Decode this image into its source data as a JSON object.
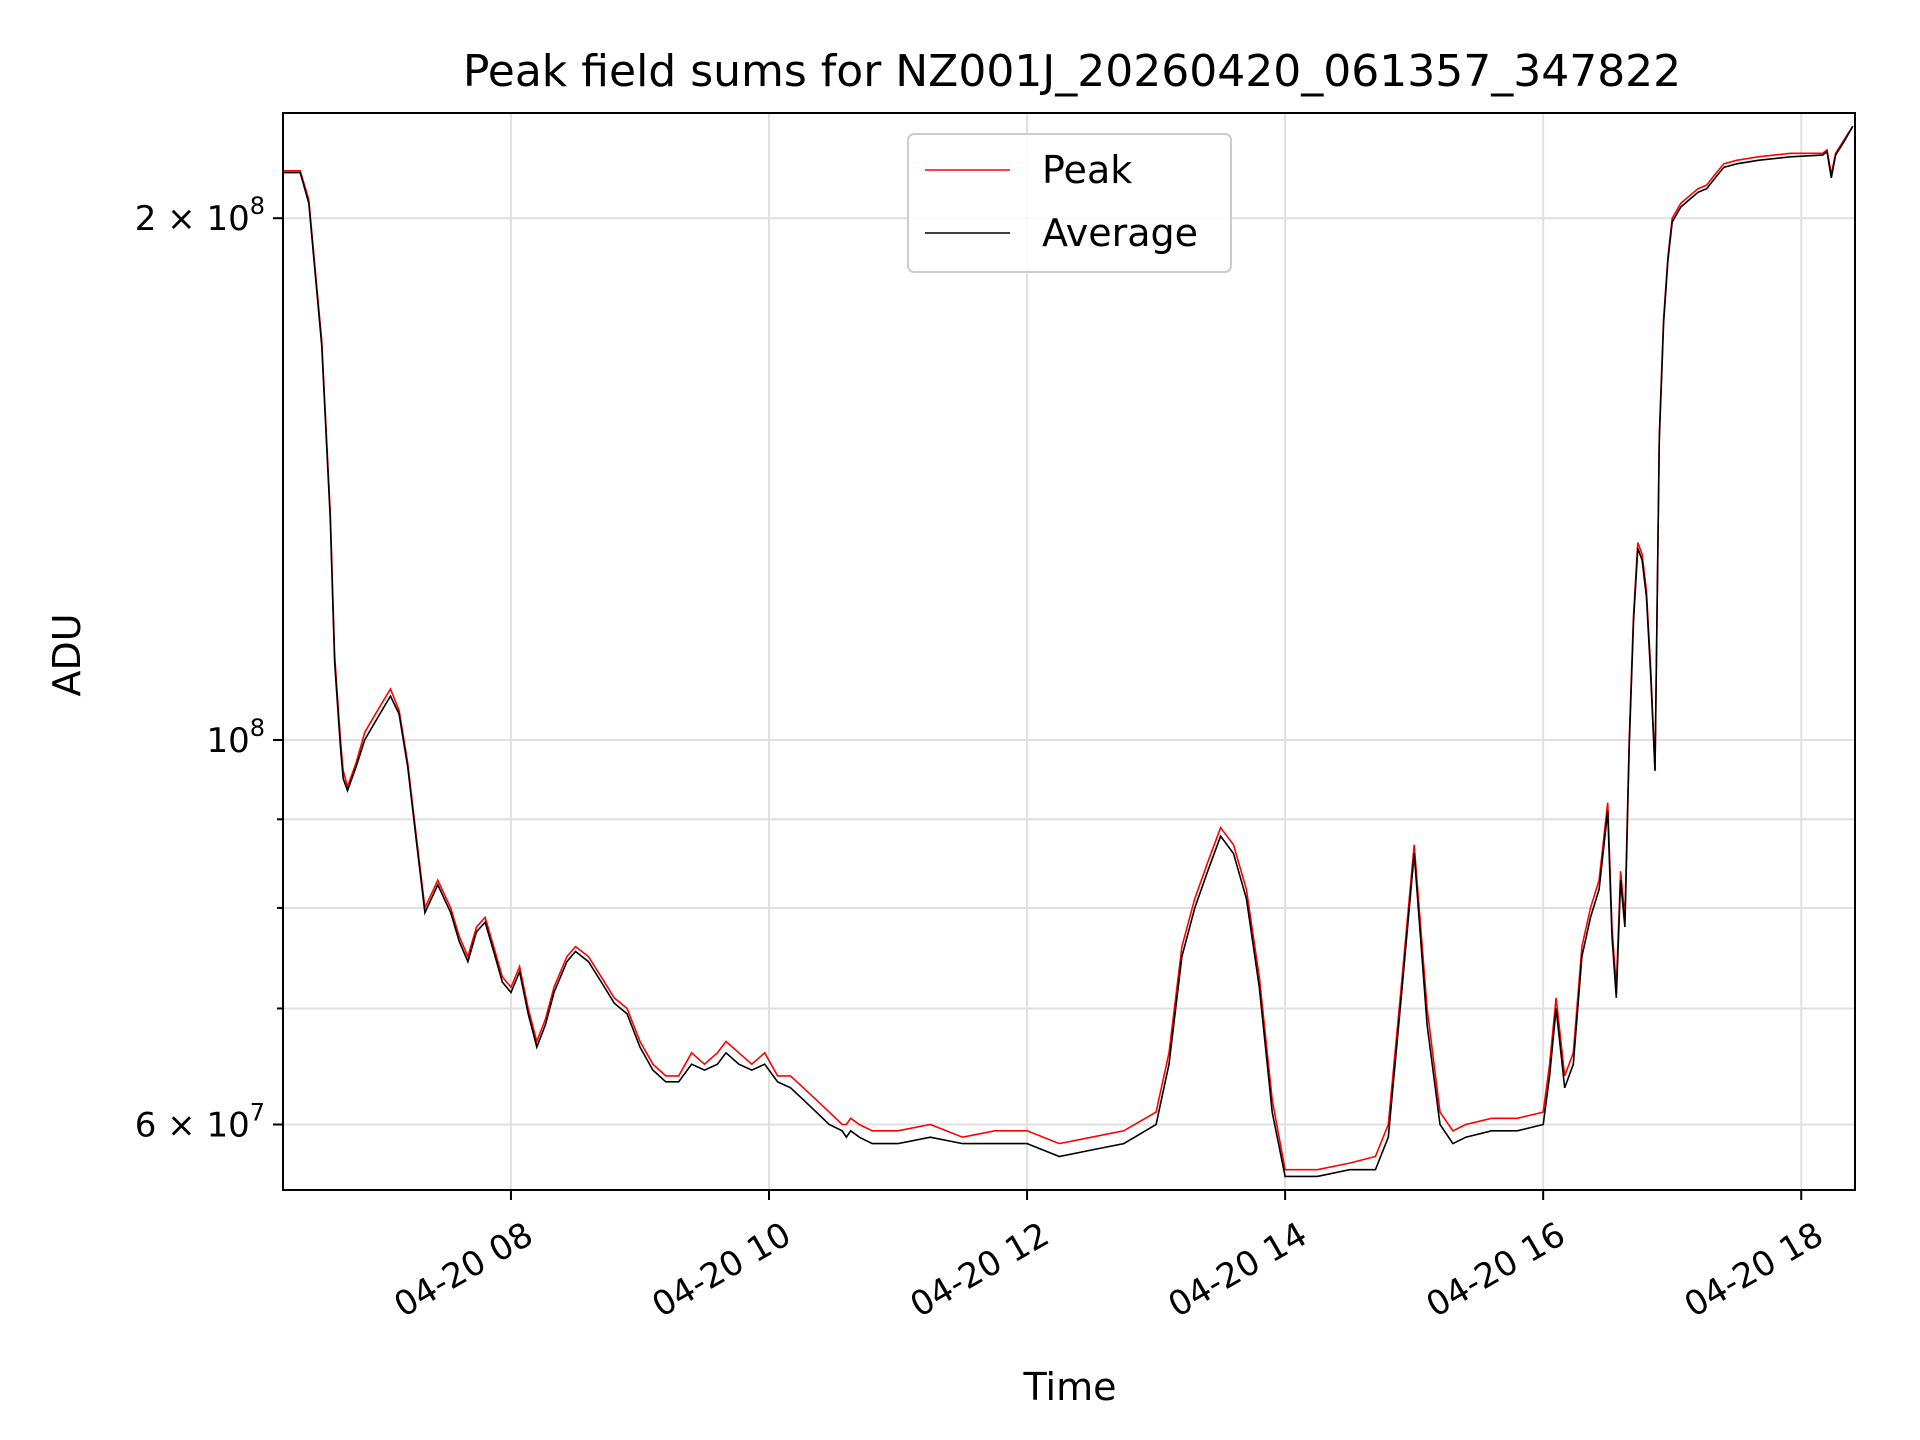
{
  "chart_data": {
    "type": "line",
    "title": "Peak field sums for NZ001J_20260420_061357_347822",
    "xlabel": "Time",
    "ylabel": "ADU",
    "yscale": "log",
    "xlim": [
      "04-20 06:14",
      "04-20 18:25"
    ],
    "ylim": [
      55000000,
      230000000
    ],
    "grid": true,
    "legend": {
      "placement": "top-center",
      "entries": [
        "Peak",
        "Average"
      ]
    },
    "x_ticks": [
      "04-20 08",
      "04-20 10",
      "04-20 12",
      "04-20 14",
      "04-20 16",
      "04-20 18"
    ],
    "y_tick_labels": [
      {
        "value": 200000000,
        "mantissa": "2",
        "exponent": "8"
      },
      {
        "value": 100000000,
        "mantissa": "",
        "exponent": "8"
      },
      {
        "value": 60000000,
        "mantissa": "6",
        "exponent": "7"
      }
    ],
    "series": [
      {
        "name": "Peak",
        "color": "#ff0000",
        "x": [
          "04-20 06:14",
          "04-20 06:22",
          "04-20 06:26",
          "04-20 06:32",
          "04-20 06:36",
          "04-20 06:38",
          "04-20 06:40",
          "04-20 06:41",
          "04-20 06:42",
          "04-20 06:44",
          "04-20 06:48",
          "04-20 06:52",
          "04-20 06:56",
          "04-20 07:00",
          "04-20 07:04",
          "04-20 07:08",
          "04-20 07:12",
          "04-20 07:16",
          "04-20 07:20",
          "04-20 07:26",
          "04-20 07:32",
          "04-20 07:36",
          "04-20 07:40",
          "04-20 07:44",
          "04-20 07:48",
          "04-20 07:52",
          "04-20 07:56",
          "04-20 08:00",
          "04-20 08:04",
          "04-20 08:08",
          "04-20 08:12",
          "04-20 08:16",
          "04-20 08:20",
          "04-20 08:26",
          "04-20 08:30",
          "04-20 08:36",
          "04-20 08:42",
          "04-20 08:48",
          "04-20 08:54",
          "04-20 09:00",
          "04-20 09:06",
          "04-20 09:12",
          "04-20 09:18",
          "04-20 09:24",
          "04-20 09:30",
          "04-20 09:36",
          "04-20 09:40",
          "04-20 09:46",
          "04-20 09:52",
          "04-20 09:58",
          "04-20 10:04",
          "04-20 10:10",
          "04-20 10:16",
          "04-20 10:22",
          "04-20 10:28",
          "04-20 10:34",
          "04-20 10:36",
          "04-20 10:38",
          "04-20 10:42",
          "04-20 10:48",
          "04-20 11:00",
          "04-20 11:15",
          "04-20 11:30",
          "04-20 11:45",
          "04-20 12:00",
          "04-20 12:15",
          "04-20 12:30",
          "04-20 12:45",
          "04-20 13:00",
          "04-20 13:06",
          "04-20 13:12",
          "04-20 13:18",
          "04-20 13:24",
          "04-20 13:30",
          "04-20 13:36",
          "04-20 13:42",
          "04-20 13:48",
          "04-20 13:54",
          "04-20 14:00",
          "04-20 14:15",
          "04-20 14:30",
          "04-20 14:42",
          "04-20 14:48",
          "04-20 14:54",
          "04-20 15:00",
          "04-20 15:06",
          "04-20 15:12",
          "04-20 15:18",
          "04-20 15:24",
          "04-20 15:36",
          "04-20 15:48",
          "04-20 16:00",
          "04-20 16:03",
          "04-20 16:06",
          "04-20 16:10",
          "04-20 16:14",
          "04-20 16:18",
          "04-20 16:22",
          "04-20 16:26",
          "04-20 16:30",
          "04-20 16:32",
          "04-20 16:34",
          "04-20 16:36",
          "04-20 16:38",
          "04-20 16:40",
          "04-20 16:42",
          "04-20 16:44",
          "04-20 16:46",
          "04-20 16:48",
          "04-20 16:50",
          "04-20 16:52",
          "04-20 16:54",
          "04-20 16:56",
          "04-20 16:58",
          "04-20 17:00",
          "04-20 17:04",
          "04-20 17:08",
          "04-20 17:12",
          "04-20 17:16",
          "04-20 17:20",
          "04-20 17:24",
          "04-20 17:30",
          "04-20 17:40",
          "04-20 17:55",
          "04-20 18:10",
          "04-20 18:12",
          "04-20 18:14",
          "04-20 18:16",
          "04-20 18:20",
          "04-20 18:24"
        ],
        "y": [
          213000000,
          213000000,
          205000000,
          170000000,
          135000000,
          112000000,
          103000000,
          99000000,
          96000000,
          94000000,
          97000000,
          101000000,
          103000000,
          105000000,
          107000000,
          104000000,
          97000000,
          88000000,
          80000000,
          83000000,
          80000000,
          77000000,
          75000000,
          78000000,
          79000000,
          76000000,
          73000000,
          72000000,
          74000000,
          70000000,
          67000000,
          69000000,
          72000000,
          75000000,
          76000000,
          75000000,
          73000000,
          71000000,
          70000000,
          67000000,
          65000000,
          64000000,
          64000000,
          66000000,
          65000000,
          66000000,
          67000000,
          66000000,
          65000000,
          66000000,
          64000000,
          64000000,
          63000000,
          62000000,
          61000000,
          60000000,
          60000000,
          60500000,
          60000000,
          59500000,
          59500000,
          60000000,
          59000000,
          59500000,
          59500000,
          58500000,
          59000000,
          59500000,
          61000000,
          66000000,
          76000000,
          81000000,
          85000000,
          89000000,
          87000000,
          82000000,
          73000000,
          62000000,
          56500000,
          56500000,
          57000000,
          57500000,
          60000000,
          72000000,
          87000000,
          70000000,
          61000000,
          59500000,
          60000000,
          60500000,
          60500000,
          61000000,
          65000000,
          71000000,
          64000000,
          66000000,
          76000000,
          80000000,
          83000000,
          92000000,
          78000000,
          72000000,
          84000000,
          79000000,
          100000000,
          118000000,
          130000000,
          128000000,
          122000000,
          110000000,
          96000000,
          150000000,
          175000000,
          190000000,
          200000000,
          204000000,
          206000000,
          208000000,
          209000000,
          212000000,
          215000000,
          216000000,
          217000000,
          218000000,
          218000000,
          219000000,
          212000000,
          218000000,
          222000000,
          226000000
        ]
      },
      {
        "name": "Average",
        "color": "#000000",
        "x": [
          "04-20 06:14",
          "04-20 06:22",
          "04-20 06:26",
          "04-20 06:32",
          "04-20 06:36",
          "04-20 06:38",
          "04-20 06:40",
          "04-20 06:41",
          "04-20 06:42",
          "04-20 06:44",
          "04-20 06:48",
          "04-20 06:52",
          "04-20 06:56",
          "04-20 07:00",
          "04-20 07:04",
          "04-20 07:08",
          "04-20 07:12",
          "04-20 07:16",
          "04-20 07:20",
          "04-20 07:26",
          "04-20 07:32",
          "04-20 07:36",
          "04-20 07:40",
          "04-20 07:44",
          "04-20 07:48",
          "04-20 07:52",
          "04-20 07:56",
          "04-20 08:00",
          "04-20 08:04",
          "04-20 08:08",
          "04-20 08:12",
          "04-20 08:16",
          "04-20 08:20",
          "04-20 08:26",
          "04-20 08:30",
          "04-20 08:36",
          "04-20 08:42",
          "04-20 08:48",
          "04-20 08:54",
          "04-20 09:00",
          "04-20 09:06",
          "04-20 09:12",
          "04-20 09:18",
          "04-20 09:24",
          "04-20 09:30",
          "04-20 09:36",
          "04-20 09:40",
          "04-20 09:46",
          "04-20 09:52",
          "04-20 09:58",
          "04-20 10:04",
          "04-20 10:10",
          "04-20 10:16",
          "04-20 10:22",
          "04-20 10:28",
          "04-20 10:34",
          "04-20 10:36",
          "04-20 10:38",
          "04-20 10:42",
          "04-20 10:48",
          "04-20 11:00",
          "04-20 11:15",
          "04-20 11:30",
          "04-20 11:45",
          "04-20 12:00",
          "04-20 12:15",
          "04-20 12:30",
          "04-20 12:45",
          "04-20 13:00",
          "04-20 13:06",
          "04-20 13:12",
          "04-20 13:18",
          "04-20 13:24",
          "04-20 13:30",
          "04-20 13:36",
          "04-20 13:42",
          "04-20 13:48",
          "04-20 13:54",
          "04-20 14:00",
          "04-20 14:15",
          "04-20 14:30",
          "04-20 14:42",
          "04-20 14:48",
          "04-20 14:54",
          "04-20 15:00",
          "04-20 15:06",
          "04-20 15:12",
          "04-20 15:18",
          "04-20 15:24",
          "04-20 15:36",
          "04-20 15:48",
          "04-20 16:00",
          "04-20 16:03",
          "04-20 16:06",
          "04-20 16:10",
          "04-20 16:14",
          "04-20 16:18",
          "04-20 16:22",
          "04-20 16:26",
          "04-20 16:30",
          "04-20 16:32",
          "04-20 16:34",
          "04-20 16:36",
          "04-20 16:38",
          "04-20 16:40",
          "04-20 16:42",
          "04-20 16:44",
          "04-20 16:46",
          "04-20 16:48",
          "04-20 16:50",
          "04-20 16:52",
          "04-20 16:54",
          "04-20 16:56",
          "04-20 16:58",
          "04-20 17:00",
          "04-20 17:04",
          "04-20 17:08",
          "04-20 17:12",
          "04-20 17:16",
          "04-20 17:20",
          "04-20 17:24",
          "04-20 17:30",
          "04-20 17:40",
          "04-20 17:55",
          "04-20 18:10",
          "04-20 18:12",
          "04-20 18:14",
          "04-20 18:16",
          "04-20 18:20",
          "04-20 18:24"
        ],
        "y": [
          212500000,
          212500000,
          204000000,
          169000000,
          134000000,
          111000000,
          102000000,
          98000000,
          95000000,
          93500000,
          96500000,
          100000000,
          102000000,
          104000000,
          106000000,
          103500000,
          96500000,
          87500000,
          79500000,
          82500000,
          79500000,
          76500000,
          74500000,
          77500000,
          78500000,
          75500000,
          72500000,
          71500000,
          73500000,
          69500000,
          66500000,
          68500000,
          71500000,
          74500000,
          75500000,
          74500000,
          72500000,
          70500000,
          69500000,
          66500000,
          64500000,
          63500000,
          63500000,
          65000000,
          64500000,
          65000000,
          66000000,
          65000000,
          64500000,
          65000000,
          63500000,
          63000000,
          62000000,
          61000000,
          60000000,
          59500000,
          59000000,
          59500000,
          59000000,
          58500000,
          58500000,
          59000000,
          58500000,
          58500000,
          58500000,
          57500000,
          58000000,
          58500000,
          60000000,
          65000000,
          75000000,
          80000000,
          84000000,
          88000000,
          86000000,
          81000000,
          72000000,
          61000000,
          56000000,
          56000000,
          56500000,
          56500000,
          59000000,
          71000000,
          86000000,
          68500000,
          60000000,
          58500000,
          59000000,
          59500000,
          59500000,
          60000000,
          64000000,
          70000000,
          63000000,
          65000000,
          75000000,
          79000000,
          82000000,
          91000000,
          77000000,
          71000000,
          83000000,
          78000000,
          99000000,
          117000000,
          129000000,
          127000000,
          121000000,
          109000000,
          96000000,
          149000000,
          174000000,
          189000000,
          199000000,
          203000000,
          205000000,
          207000000,
          208000000,
          211000000,
          214000000,
          215000000,
          216000000,
          217000000,
          217500000,
          218500000,
          211000000,
          217500000,
          221500000,
          226000000
        ]
      }
    ]
  }
}
